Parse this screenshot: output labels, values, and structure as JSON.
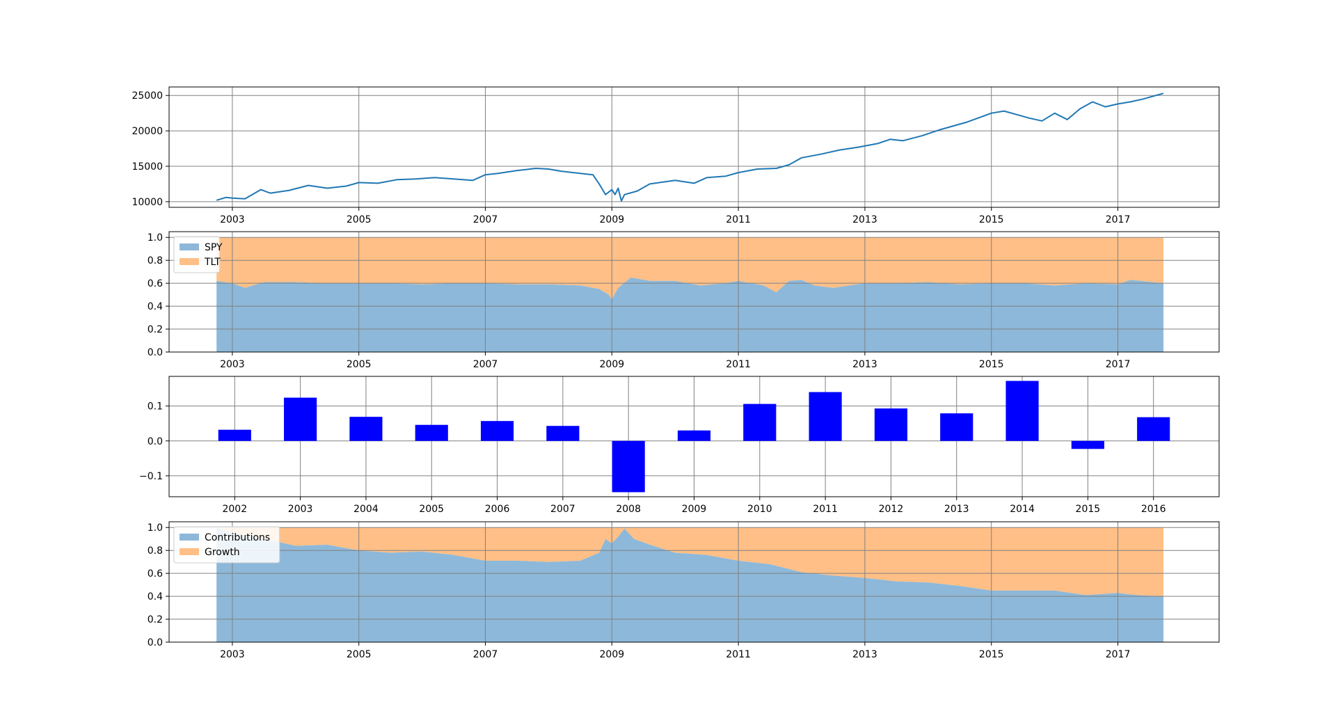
{
  "chart_data": [
    {
      "type": "line",
      "x_range": [
        2002.0,
        2018.6
      ],
      "ylim": [
        9200,
        26200
      ],
      "x_ticks": [
        "2003",
        "2005",
        "2007",
        "2009",
        "2011",
        "2013",
        "2015",
        "2017"
      ],
      "y_ticks": [
        "10000",
        "15000",
        "20000",
        "25000"
      ],
      "grid": true,
      "series": [
        {
          "color": "#1f77b4",
          "x": [
            2002.75,
            2002.9,
            2003.0,
            2003.2,
            2003.45,
            2003.6,
            2003.9,
            2004.2,
            2004.5,
            2004.8,
            2005.0,
            2005.3,
            2005.6,
            2005.9,
            2006.2,
            2006.5,
            2006.8,
            2007.0,
            2007.2,
            2007.5,
            2007.8,
            2008.0,
            2008.2,
            2008.5,
            2008.7,
            2008.8,
            2008.9,
            2009.0,
            2009.05,
            2009.1,
            2009.15,
            2009.2,
            2009.4,
            2009.6,
            2010.0,
            2010.3,
            2010.5,
            2010.8,
            2011.0,
            2011.3,
            2011.6,
            2011.8,
            2012.0,
            2012.3,
            2012.6,
            2012.9,
            2013.2,
            2013.4,
            2013.6,
            2013.9,
            2014.2,
            2014.6,
            2015.0,
            2015.2,
            2015.4,
            2015.6,
            2015.8,
            2016.0,
            2016.2,
            2016.4,
            2016.6,
            2016.8,
            2017.0,
            2017.2,
            2017.4,
            2017.6,
            2017.72
          ],
          "y": [
            10200,
            10600,
            10500,
            10400,
            11700,
            11200,
            11600,
            12300,
            11900,
            12200,
            12700,
            12600,
            13100,
            13200,
            13400,
            13200,
            13000,
            13800,
            14000,
            14400,
            14700,
            14600,
            14300,
            14000,
            13800,
            12500,
            11000,
            11700,
            11000,
            11900,
            10100,
            11000,
            11500,
            12500,
            13000,
            12600,
            13400,
            13600,
            14100,
            14600,
            14700,
            15200,
            16200,
            16700,
            17300,
            17700,
            18200,
            18800,
            18600,
            19300,
            20200,
            21200,
            22500,
            22800,
            22300,
            21800,
            21400,
            22500,
            21600,
            23100,
            24100,
            23400,
            23800,
            24100,
            24500,
            25000,
            25300
          ]
        }
      ]
    },
    {
      "type": "area",
      "x_range": [
        2002.0,
        2018.6
      ],
      "ylim": [
        0,
        1.05
      ],
      "x_ticks": [
        "2003",
        "2005",
        "2007",
        "2009",
        "2011",
        "2013",
        "2015",
        "2017"
      ],
      "y_ticks": [
        "0.0",
        "0.2",
        "0.4",
        "0.6",
        "0.8",
        "1.0"
      ],
      "grid": true,
      "legend_position": "upper-left",
      "x": [
        2002.75,
        2003.0,
        2003.2,
        2003.5,
        2004.0,
        2004.5,
        2005.0,
        2005.5,
        2006.0,
        2006.5,
        2007.0,
        2007.5,
        2008.0,
        2008.5,
        2008.8,
        2008.95,
        2009.0,
        2009.1,
        2009.3,
        2009.6,
        2010.0,
        2010.4,
        2010.8,
        2011.0,
        2011.4,
        2011.6,
        2011.8,
        2012.0,
        2012.2,
        2012.5,
        2013.0,
        2013.5,
        2014.0,
        2014.5,
        2015.0,
        2015.5,
        2016.0,
        2016.5,
        2017.0,
        2017.2,
        2017.72
      ],
      "series": [
        {
          "name": "SPY",
          "color": "#8db8d9",
          "values": [
            0.62,
            0.6,
            0.56,
            0.61,
            0.61,
            0.6,
            0.6,
            0.6,
            0.59,
            0.6,
            0.6,
            0.59,
            0.59,
            0.58,
            0.55,
            0.5,
            0.46,
            0.56,
            0.65,
            0.62,
            0.62,
            0.58,
            0.6,
            0.62,
            0.58,
            0.52,
            0.62,
            0.63,
            0.58,
            0.56,
            0.6,
            0.6,
            0.61,
            0.59,
            0.6,
            0.6,
            0.58,
            0.6,
            0.59,
            0.63,
            0.6
          ]
        },
        {
          "name": "TLT",
          "color": "#ffbf86",
          "values": [
            1,
            1,
            1,
            1,
            1,
            1,
            1,
            1,
            1,
            1,
            1,
            1,
            1,
            1,
            1,
            1,
            1,
            1,
            1,
            1,
            1,
            1,
            1,
            1,
            1,
            1,
            1,
            1,
            1,
            1,
            1,
            1,
            1,
            1,
            1,
            1,
            1,
            1,
            1,
            1,
            1
          ]
        }
      ]
    },
    {
      "type": "bar",
      "categories": [
        "2002",
        "2003",
        "2004",
        "2005",
        "2006",
        "2007",
        "2008",
        "2009",
        "2010",
        "2011",
        "2012",
        "2013",
        "2014",
        "2015",
        "2016"
      ],
      "values": [
        0.032,
        0.124,
        0.069,
        0.046,
        0.057,
        0.043,
        -0.147,
        0.03,
        0.106,
        0.14,
        0.093,
        0.079,
        0.172,
        -0.023,
        0.068
      ],
      "color": "#0000ff",
      "ylim": [
        -0.16,
        0.185
      ],
      "y_ticks": [
        "−0.1",
        "0.0",
        "0.1"
      ],
      "grid": true
    },
    {
      "type": "area",
      "x_range": [
        2002.0,
        2018.6
      ],
      "ylim": [
        0,
        1.05
      ],
      "x_ticks": [
        "2003",
        "2005",
        "2007",
        "2009",
        "2011",
        "2013",
        "2015",
        "2017"
      ],
      "y_ticks": [
        "0.0",
        "0.2",
        "0.4",
        "0.6",
        "0.8",
        "1.0"
      ],
      "grid": true,
      "legend_position": "upper-left",
      "x": [
        2002.75,
        2003.0,
        2003.3,
        2003.6,
        2004.0,
        2004.5,
        2005.0,
        2005.5,
        2006.0,
        2006.5,
        2007.0,
        2007.5,
        2008.0,
        2008.5,
        2008.8,
        2008.9,
        2009.0,
        2009.1,
        2009.2,
        2009.35,
        2009.6,
        2010.0,
        2010.5,
        2011.0,
        2011.5,
        2012.0,
        2012.5,
        2013.0,
        2013.5,
        2014.0,
        2014.5,
        2015.0,
        2015.5,
        2016.0,
        2016.5,
        2017.0,
        2017.3,
        2017.72
      ],
      "series": [
        {
          "name": "Contributions",
          "color": "#8db8d9",
          "values": [
            1.0,
            0.95,
            0.92,
            0.89,
            0.84,
            0.85,
            0.8,
            0.78,
            0.79,
            0.76,
            0.71,
            0.71,
            0.7,
            0.71,
            0.78,
            0.9,
            0.86,
            0.92,
            0.99,
            0.9,
            0.85,
            0.78,
            0.76,
            0.71,
            0.68,
            0.61,
            0.58,
            0.56,
            0.53,
            0.52,
            0.49,
            0.45,
            0.45,
            0.45,
            0.41,
            0.43,
            0.41,
            0.4
          ]
        },
        {
          "name": "Growth",
          "color": "#ffbf86",
          "values": [
            1,
            1,
            1,
            1,
            1,
            1,
            1,
            1,
            1,
            1,
            1,
            1,
            1,
            1,
            1,
            1,
            1,
            1,
            1,
            1,
            1,
            1,
            1,
            1,
            1,
            1,
            1,
            1,
            1,
            1,
            1,
            1,
            1,
            1,
            1,
            1,
            1,
            1
          ]
        }
      ]
    }
  ]
}
